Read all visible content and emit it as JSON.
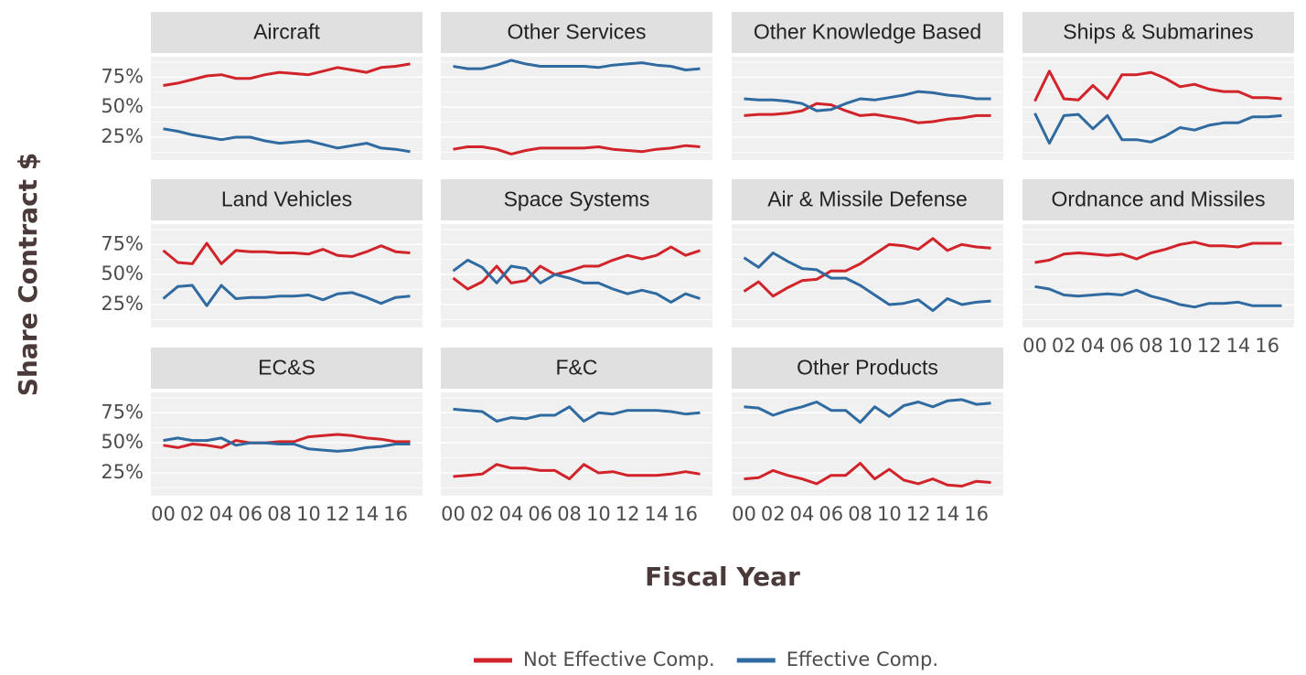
{
  "chart_data": {
    "type": "line",
    "x_label": "Fiscal Year",
    "y_label": "Share Contract $",
    "x": [
      2000,
      2001,
      2002,
      2003,
      2004,
      2005,
      2006,
      2007,
      2008,
      2009,
      2010,
      2011,
      2012,
      2013,
      2014,
      2015,
      2016,
      2017
    ],
    "xlim": [
      1999.15,
      2017.85
    ],
    "xticks": [
      {
        "value": 2000,
        "label": "00"
      },
      {
        "value": 2002,
        "label": "02"
      },
      {
        "value": 2004,
        "label": "04"
      },
      {
        "value": 2006,
        "label": "06"
      },
      {
        "value": 2008,
        "label": "08"
      },
      {
        "value": 2010,
        "label": "10"
      },
      {
        "value": 2012,
        "label": "12"
      },
      {
        "value": 2014,
        "label": "14"
      },
      {
        "value": 2016,
        "label": "16"
      }
    ],
    "ylim": [
      6,
      92
    ],
    "yticks": [
      {
        "value": 25,
        "label": "25%"
      },
      {
        "value": 50,
        "label": "50%"
      },
      {
        "value": 75,
        "label": "75%"
      }
    ],
    "minor_yticks": [
      12.5,
      37.5,
      62.5,
      87.5
    ],
    "grid": true,
    "legend": "bottom",
    "series": [
      {
        "name": "Not Effective Comp.",
        "color": "#d1232a"
      },
      {
        "name": "Effective Comp.",
        "color": "#2f6aa0"
      }
    ],
    "facets": [
      {
        "title": "Aircraft",
        "series": [
          {
            "values": [
              68,
              70,
              73,
              76,
              77,
              74,
              74,
              77,
              79,
              78,
              77,
              80,
              83,
              81,
              79,
              83,
              84,
              86
            ]
          },
          {
            "values": [
              32,
              30,
              27,
              25,
              23,
              25,
              25,
              22,
              20,
              21,
              22,
              19,
              16,
              18,
              20,
              16,
              15,
              13
            ]
          }
        ]
      },
      {
        "title": "Other Services",
        "series": [
          {
            "values": [
              15,
              17,
              17,
              15,
              11,
              14,
              16,
              16,
              16,
              16,
              17,
              15,
              14,
              13,
              15,
              16,
              18,
              17
            ]
          },
          {
            "values": [
              84,
              82,
              82,
              85,
              89,
              86,
              84,
              84,
              84,
              84,
              83,
              85,
              86,
              87,
              85,
              84,
              81,
              82
            ]
          }
        ]
      },
      {
        "title": "Other Knowledge Based",
        "series": [
          {
            "values": [
              43,
              44,
              44,
              45,
              47,
              53,
              52,
              47,
              43,
              44,
              42,
              40,
              37,
              38,
              40,
              41,
              43,
              43
            ]
          },
          {
            "values": [
              57,
              56,
              56,
              55,
              53,
              47,
              48,
              53,
              57,
              56,
              58,
              60,
              63,
              62,
              60,
              59,
              57,
              57
            ]
          }
        ]
      },
      {
        "title": "Ships & Submarines",
        "series": [
          {
            "values": [
              55,
              80,
              57,
              56,
              68,
              57,
              77,
              77,
              79,
              74,
              67,
              69,
              65,
              63,
              63,
              58,
              58,
              57
            ]
          },
          {
            "values": [
              45,
              20,
              43,
              44,
              32,
              43,
              23,
              23,
              21,
              26,
              33,
              31,
              35,
              37,
              37,
              42,
              42,
              43
            ]
          }
        ]
      },
      {
        "title": "Land Vehicles",
        "series": [
          {
            "values": [
              70,
              60,
              59,
              76,
              59,
              70,
              69,
              69,
              68,
              68,
              67,
              71,
              66,
              65,
              69,
              74,
              69,
              68
            ]
          },
          {
            "values": [
              30,
              40,
              41,
              24,
              41,
              30,
              31,
              31,
              32,
              32,
              33,
              29,
              34,
              35,
              31,
              26,
              31,
              32
            ]
          }
        ]
      },
      {
        "title": "Space Systems",
        "series": [
          {
            "values": [
              47,
              38,
              44,
              57,
              43,
              45,
              57,
              50,
              53,
              57,
              57,
              62,
              66,
              63,
              66,
              73,
              66,
              70
            ]
          },
          {
            "values": [
              53,
              62,
              56,
              43,
              57,
              55,
              43,
              50,
              47,
              43,
              43,
              38,
              34,
              37,
              34,
              27,
              34,
              30
            ]
          }
        ]
      },
      {
        "title": "Air & Missile Defense",
        "series": [
          {
            "values": [
              36,
              44,
              32,
              39,
              45,
              46,
              53,
              53,
              59,
              67,
              75,
              74,
              71,
              80,
              70,
              75,
              73,
              72
            ]
          },
          {
            "values": [
              64,
              56,
              68,
              61,
              55,
              54,
              47,
              47,
              41,
              33,
              25,
              26,
              29,
              20,
              30,
              25,
              27,
              28
            ]
          }
        ]
      },
      {
        "title": "Ordnance and Missiles",
        "series": [
          {
            "values": [
              60,
              62,
              67,
              68,
              67,
              66,
              67,
              63,
              68,
              71,
              75,
              77,
              74,
              74,
              73,
              76,
              76,
              76
            ]
          },
          {
            "values": [
              40,
              38,
              33,
              32,
              33,
              34,
              33,
              37,
              32,
              29,
              25,
              23,
              26,
              26,
              27,
              24,
              24,
              24
            ]
          }
        ]
      },
      {
        "title": "EC&S",
        "series": [
          {
            "values": [
              48,
              46,
              49,
              48,
              46,
              52,
              50,
              50,
              51,
              51,
              55,
              56,
              57,
              56,
              54,
              53,
              51,
              51
            ]
          },
          {
            "values": [
              52,
              54,
              52,
              52,
              54,
              48,
              50,
              50,
              49,
              49,
              45,
              44,
              43,
              44,
              46,
              47,
              49,
              49
            ]
          }
        ]
      },
      {
        "title": "F&C",
        "series": [
          {
            "values": [
              22,
              23,
              24,
              32,
              29,
              29,
              27,
              27,
              20,
              32,
              25,
              26,
              23,
              23,
              23,
              24,
              26,
              24
            ]
          },
          {
            "values": [
              78,
              77,
              76,
              68,
              71,
              70,
              73,
              73,
              80,
              68,
              75,
              74,
              77,
              77,
              77,
              76,
              74,
              75
            ]
          }
        ]
      },
      {
        "title": "Other Products",
        "series": [
          {
            "values": [
              20,
              21,
              27,
              23,
              20,
              16,
              23,
              23,
              33,
              20,
              28,
              19,
              16,
              20,
              15,
              14,
              18,
              17
            ]
          },
          {
            "values": [
              80,
              79,
              73,
              77,
              80,
              84,
              77,
              77,
              67,
              80,
              72,
              81,
              84,
              80,
              85,
              86,
              82,
              83
            ]
          }
        ]
      }
    ]
  }
}
